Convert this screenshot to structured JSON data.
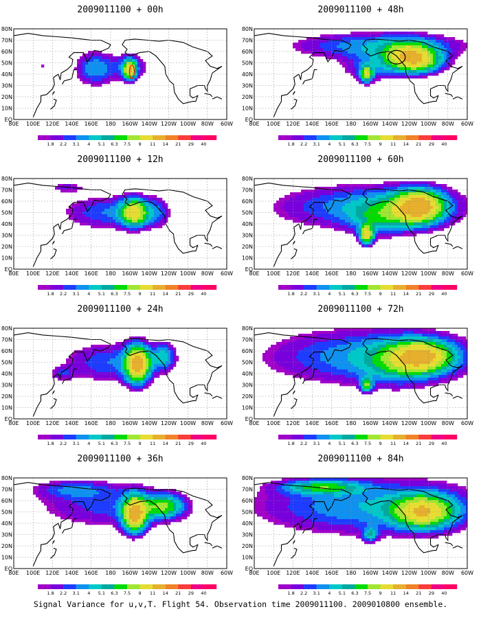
{
  "caption": "Signal Variance for u,v,T. Flight 54. Observation time 2009011100. 2009010800 ensemble.",
  "colorbar": {
    "levels": [
      "1.8",
      "2.2",
      "3.1",
      "4",
      "5.1",
      "6.3",
      "7.5",
      "9",
      "11",
      "14",
      "21",
      "29",
      "40"
    ],
    "colors": [
      "#a000c8",
      "#7800dc",
      "#1e3cff",
      "#0f91f0",
      "#00c8c8",
      "#00aaa0",
      "#00dc00",
      "#a0e632",
      "#e6dc32",
      "#e6af2d",
      "#f08228",
      "#fa3c3c",
      "#f00082"
    ]
  },
  "map_axes": {
    "lat_labels": [
      "80N",
      "70N",
      "60N",
      "50N",
      "40N",
      "30N",
      "20N",
      "10N",
      "EQ"
    ],
    "lon_labels": [
      "80E",
      "100E",
      "120E",
      "140E",
      "160E",
      "180",
      "160W",
      "140W",
      "120W",
      "100W",
      "80W",
      "60W"
    ]
  },
  "chart_data": [
    {
      "type": "heatmap",
      "title": "2009011100 + 00h",
      "lead_hours": 0,
      "blobs": [
        {
          "lon": 164,
          "lat": 45,
          "rx": 20,
          "ry": 15,
          "peak": 5
        },
        {
          "lon": 200,
          "lat": 46,
          "rx": 18,
          "ry": 12,
          "peak": 4
        },
        {
          "lon": 200,
          "lat": 44,
          "rx": 6,
          "ry": 8,
          "peak": 11
        },
        {
          "lon": 110,
          "lat": 47,
          "rx": 6,
          "ry": 4,
          "peak": 2
        }
      ],
      "annotation": {
        "shape": "ellipse",
        "color": "#ff0000",
        "lon": 202,
        "lat": 42,
        "rx": 2.5,
        "ry": 6
      }
    },
    {
      "type": "heatmap",
      "title": "2009011100 + 48h",
      "lead_hours": 48,
      "blobs": [
        {
          "lon": 210,
          "lat": 65,
          "rx": 90,
          "ry": 12,
          "peak": 5
        },
        {
          "lon": 240,
          "lat": 55,
          "rx": 25,
          "ry": 12,
          "peak": 11
        },
        {
          "lon": 196,
          "lat": 40,
          "rx": 6,
          "ry": 7,
          "peak": 9
        },
        {
          "lon": 255,
          "lat": 50,
          "rx": 25,
          "ry": 10,
          "peak": 5
        },
        {
          "lon": 200,
          "lat": 45,
          "rx": 30,
          "ry": 12,
          "peak": 3.5
        }
      ],
      "annotation": {
        "shape": "ellipse",
        "color": "#000000",
        "lon": 227,
        "lat": 55,
        "rx": 9,
        "ry": 6
      }
    },
    {
      "type": "heatmap",
      "title": "2009011100 + 12h",
      "lead_hours": 12,
      "blobs": [
        {
          "lon": 175,
          "lat": 50,
          "rx": 45,
          "ry": 15,
          "peak": 4
        },
        {
          "lon": 205,
          "lat": 50,
          "rx": 14,
          "ry": 12,
          "peak": 11
        },
        {
          "lon": 135,
          "lat": 72,
          "rx": 20,
          "ry": 5,
          "peak": 2.5
        },
        {
          "lon": 230,
          "lat": 50,
          "rx": 12,
          "ry": 15,
          "peak": 3
        }
      ]
    },
    {
      "type": "heatmap",
      "title": "2009011100 + 60h",
      "lead_hours": 60,
      "blobs": [
        {
          "lon": 200,
          "lat": 55,
          "rx": 100,
          "ry": 20,
          "peak": 5
        },
        {
          "lon": 250,
          "lat": 55,
          "rx": 25,
          "ry": 14,
          "peak": 14
        },
        {
          "lon": 196,
          "lat": 30,
          "rx": 7,
          "ry": 8,
          "peak": 11
        },
        {
          "lon": 210,
          "lat": 45,
          "rx": 30,
          "ry": 15,
          "peak": 4
        }
      ]
    },
    {
      "type": "heatmap",
      "title": "2009011100 + 24h",
      "lead_hours": 24,
      "blobs": [
        {
          "lon": 180,
          "lat": 50,
          "rx": 50,
          "ry": 18,
          "peak": 4
        },
        {
          "lon": 208,
          "lat": 48,
          "rx": 12,
          "ry": 16,
          "peak": 14
        },
        {
          "lon": 235,
          "lat": 55,
          "rx": 12,
          "ry": 12,
          "peak": 5
        },
        {
          "lon": 130,
          "lat": 40,
          "rx": 12,
          "ry": 6,
          "peak": 2.5
        }
      ]
    },
    {
      "type": "heatmap",
      "title": "2009011100 + 72h",
      "lead_hours": 72,
      "blobs": [
        {
          "lon": 200,
          "lat": 55,
          "rx": 110,
          "ry": 25,
          "peak": 5
        },
        {
          "lon": 255,
          "lat": 55,
          "rx": 30,
          "ry": 13,
          "peak": 11
        },
        {
          "lon": 196,
          "lat": 30,
          "rx": 6,
          "ry": 6,
          "peak": 7.5
        },
        {
          "lon": 230,
          "lat": 50,
          "rx": 35,
          "ry": 18,
          "peak": 4
        }
      ]
    },
    {
      "type": "heatmap",
      "title": "2009011100 + 36h",
      "lead_hours": 36,
      "blobs": [
        {
          "lon": 180,
          "lat": 55,
          "rx": 80,
          "ry": 20,
          "peak": 3.5
        },
        {
          "lon": 205,
          "lat": 48,
          "rx": 12,
          "ry": 15,
          "peak": 14
        },
        {
          "lon": 235,
          "lat": 55,
          "rx": 20,
          "ry": 10,
          "peak": 7.5
        },
        {
          "lon": 140,
          "lat": 70,
          "rx": 40,
          "ry": 8,
          "peak": 3
        }
      ]
    },
    {
      "type": "heatmap",
      "title": "2009011100 + 84h",
      "lead_hours": 84,
      "blobs": [
        {
          "lon": 200,
          "lat": 55,
          "rx": 120,
          "ry": 25,
          "peak": 5.1
        },
        {
          "lon": 255,
          "lat": 50,
          "rx": 30,
          "ry": 14,
          "peak": 11
        },
        {
          "lon": 200,
          "lat": 30,
          "rx": 8,
          "ry": 6,
          "peak": 5
        },
        {
          "lon": 150,
          "lat": 72,
          "rx": 40,
          "ry": 6,
          "peak": 6.3
        }
      ]
    }
  ]
}
